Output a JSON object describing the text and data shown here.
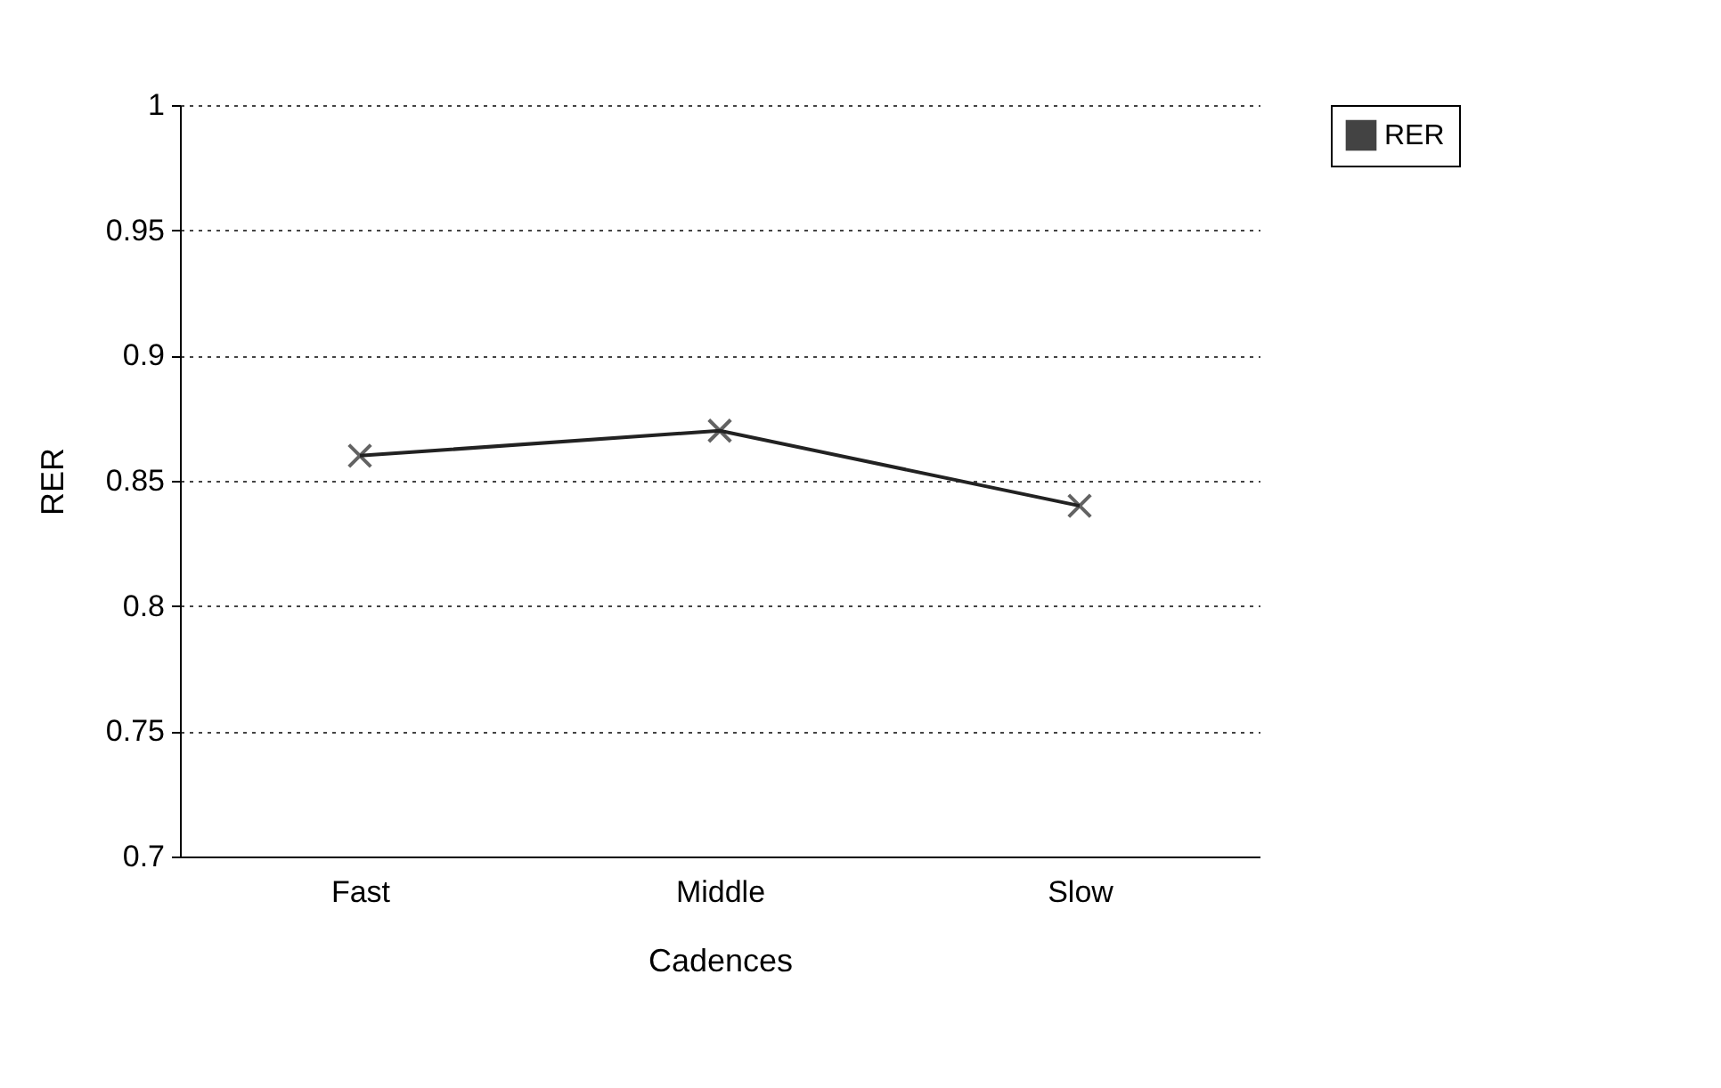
{
  "chart_data": {
    "type": "line",
    "xlabel": "Cadences",
    "ylabel": "RER",
    "categories": [
      "Fast",
      "Middle",
      "Slow"
    ],
    "series": [
      {
        "name": "RER",
        "color": "#222222",
        "values": [
          0.86,
          0.87,
          0.84
        ]
      }
    ],
    "ylim": [
      0.7,
      1
    ],
    "yticks": [
      0.7,
      0.75,
      0.8,
      0.85,
      0.9,
      0.95,
      1
    ],
    "grid": "y",
    "legend": "top right",
    "marker": "cross",
    "line_style": "solid"
  }
}
